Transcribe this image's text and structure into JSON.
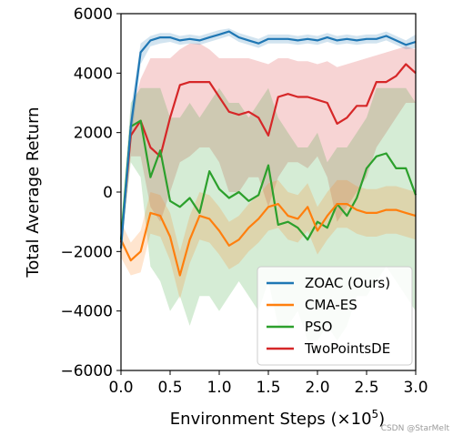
{
  "chart_data": {
    "type": "line",
    "title": "",
    "xlabel": "Environment Steps (×10",
    "xlabel_exponent": "5",
    "xlabel_close": ")",
    "ylabel": "Total Average Return",
    "xlim": [
      0,
      3.0
    ],
    "ylim": [
      -6000,
      6000
    ],
    "xticks": [
      "0.0",
      "0.5",
      "1.0",
      "1.5",
      "2.0",
      "2.5",
      "3.0"
    ],
    "yticks": [
      "−6000",
      "−4000",
      "−2000",
      "0",
      "2000",
      "4000",
      "6000"
    ],
    "grid": false,
    "legend_position": "lower-right",
    "series": [
      {
        "name": "ZOAC (Ours)",
        "color": "#1f77b4",
        "x": [
          0,
          0.1,
          0.2,
          0.3,
          0.4,
          0.5,
          0.6,
          0.7,
          0.8,
          0.9,
          1.0,
          1.1,
          1.2,
          1.3,
          1.4,
          1.5,
          1.6,
          1.7,
          1.8,
          1.9,
          2.0,
          2.1,
          2.2,
          2.3,
          2.4,
          2.5,
          2.6,
          2.7,
          2.8,
          2.9,
          3.0
        ],
        "y": [
          -1900,
          2200,
          4700,
          5100,
          5200,
          5200,
          5100,
          5150,
          5100,
          5200,
          5300,
          5400,
          5200,
          5100,
          5000,
          5150,
          5150,
          5150,
          5100,
          5150,
          5100,
          5200,
          5100,
          5150,
          5100,
          5150,
          5150,
          5250,
          5100,
          4950,
          5050
        ],
        "low": [
          -2100,
          1600,
          4300,
          4900,
          5000,
          5050,
          4950,
          5000,
          4950,
          5050,
          5150,
          5250,
          5050,
          4950,
          4850,
          5000,
          5000,
          5000,
          4950,
          5000,
          4950,
          5050,
          4950,
          5000,
          4950,
          5000,
          5000,
          5100,
          4950,
          4800,
          4850
        ],
        "high": [
          -1700,
          2800,
          5000,
          5250,
          5350,
          5350,
          5250,
          5300,
          5250,
          5350,
          5450,
          5500,
          5350,
          5250,
          5150,
          5300,
          5300,
          5300,
          5250,
          5300,
          5250,
          5350,
          5250,
          5300,
          5250,
          5300,
          5300,
          5400,
          5250,
          5100,
          5300
        ]
      },
      {
        "name": "CMA-ES",
        "color": "#ff7f0e",
        "x": [
          0,
          0.1,
          0.2,
          0.3,
          0.4,
          0.5,
          0.6,
          0.7,
          0.8,
          0.9,
          1.0,
          1.1,
          1.2,
          1.3,
          1.4,
          1.5,
          1.6,
          1.7,
          1.8,
          1.9,
          2.0,
          2.1,
          2.2,
          2.3,
          2.4,
          2.5,
          2.6,
          2.7,
          2.8,
          2.9,
          3.0
        ],
        "y": [
          -1600,
          -2300,
          -2000,
          -700,
          -800,
          -1500,
          -2800,
          -1600,
          -800,
          -900,
          -1300,
          -1800,
          -1600,
          -1200,
          -900,
          -500,
          -400,
          -800,
          -900,
          -500,
          -1300,
          -800,
          -400,
          -400,
          -600,
          -700,
          -700,
          -600,
          -600,
          -700,
          -800
        ],
        "low": [
          -2200,
          -2800,
          -2700,
          -1400,
          -1500,
          -2300,
          -3600,
          -2400,
          -1600,
          -1700,
          -2100,
          -2600,
          -2400,
          -2000,
          -1700,
          -1300,
          -1200,
          -1600,
          -1700,
          -1300,
          -2100,
          -1600,
          -1200,
          -1200,
          -1400,
          -1500,
          -1500,
          -1400,
          -1400,
          -1500,
          -1600
        ],
        "high": [
          -1000,
          -1700,
          -1300,
          0,
          -100,
          -700,
          -2000,
          -800,
          0,
          -100,
          -500,
          -1000,
          -800,
          -400,
          -100,
          300,
          400,
          0,
          -100,
          300,
          -500,
          0,
          400,
          400,
          200,
          100,
          100,
          200,
          200,
          100,
          0
        ]
      },
      {
        "name": "PSO",
        "color": "#2ca02c",
        "x": [
          0,
          0.1,
          0.2,
          0.3,
          0.4,
          0.5,
          0.6,
          0.7,
          0.8,
          0.9,
          1.0,
          1.1,
          1.2,
          1.3,
          1.4,
          1.5,
          1.6,
          1.7,
          1.8,
          1.9,
          2.0,
          2.1,
          2.2,
          2.3,
          2.4,
          2.5,
          2.6,
          2.7,
          2.8,
          2.9,
          3.0
        ],
        "y": [
          -1600,
          2200,
          2400,
          500,
          1400,
          -300,
          -500,
          -200,
          -700,
          700,
          100,
          -200,
          0,
          -300,
          -100,
          900,
          -1100,
          -1000,
          -1200,
          -1600,
          -1000,
          -1200,
          -400,
          -800,
          -200,
          800,
          1200,
          1300,
          800,
          800,
          -100
        ],
        "low": [
          -2000,
          1000,
          500,
          -2500,
          -3000,
          -4000,
          -3500,
          -4500,
          -3500,
          -3500,
          -4000,
          -3500,
          -3000,
          -3500,
          -4000,
          -3000,
          -4500,
          -4500,
          -4000,
          -5000,
          -5000,
          -4500,
          -5000,
          -4500,
          -3500,
          -3500,
          -3000,
          -2500,
          -3000,
          -3500,
          -4000
        ],
        "high": [
          -1200,
          3000,
          3500,
          3500,
          3500,
          2500,
          2500,
          3000,
          2500,
          3000,
          3500,
          3000,
          3000,
          2500,
          3000,
          3500,
          2500,
          2000,
          1500,
          1500,
          2000,
          1000,
          1500,
          1500,
          2000,
          2500,
          3500,
          3500,
          3500,
          3500,
          3000
        ]
      },
      {
        "name": "TwoPointsDE",
        "color": "#d62728",
        "x": [
          0,
          0.1,
          0.2,
          0.3,
          0.4,
          0.5,
          0.6,
          0.7,
          0.8,
          0.9,
          1.0,
          1.1,
          1.2,
          1.3,
          1.4,
          1.5,
          1.6,
          1.7,
          1.8,
          1.9,
          2.0,
          2.1,
          2.2,
          2.3,
          2.4,
          2.5,
          2.6,
          2.7,
          2.8,
          2.9,
          3.0
        ],
        "y": [
          -1700,
          1900,
          2400,
          1500,
          1200,
          2500,
          3600,
          3700,
          3700,
          3700,
          3200,
          2700,
          2600,
          2700,
          2500,
          1900,
          3200,
          3300,
          3200,
          3200,
          3100,
          3000,
          2300,
          2500,
          2900,
          2900,
          3700,
          3700,
          3900,
          4300,
          4000
        ],
        "low": [
          -2000,
          1200,
          1200,
          -500,
          -1000,
          0,
          1000,
          1200,
          1500,
          1500,
          1000,
          0,
          0,
          500,
          500,
          -500,
          500,
          1000,
          1000,
          800,
          1200,
          500,
          -1000,
          -500,
          0,
          500,
          1500,
          2000,
          2500,
          3000,
          3000
        ],
        "high": [
          -1400,
          2600,
          3800,
          4500,
          4500,
          4500,
          4800,
          5000,
          5000,
          4800,
          4500,
          4500,
          4500,
          4500,
          4400,
          4300,
          4500,
          4500,
          4400,
          4400,
          4300,
          4400,
          4200,
          4300,
          4400,
          4500,
          4600,
          4700,
          4800,
          4900,
          4800
        ]
      }
    ]
  },
  "watermark": "CSDN @StarMelt"
}
